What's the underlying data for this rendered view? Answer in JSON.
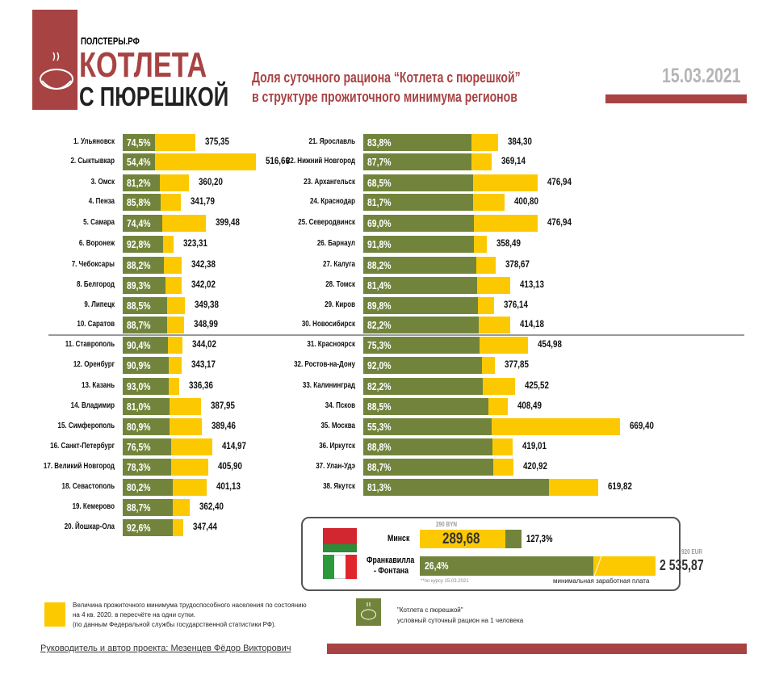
{
  "header": {
    "brand_site": "ПОЛСТЕРЫ.РФ",
    "logo_line1": "КОТЛЕТА",
    "logo_line2": "С ПЮРЕШКОЙ",
    "title_line1": "Доля суточного рациона “Котлета с пюрешкой”",
    "title_line2": "в структуре прожиточного минимума регионов",
    "date": "15.03.2021"
  },
  "colors": {
    "brand_red": "#a84343",
    "green": "#72843c",
    "yellow": "#fcc900",
    "date_gray": "#b5b5b5"
  },
  "chart_data": {
    "type": "bar",
    "stacked": true,
    "series": [
      {
        "meaning": "share",
        "unit": "%"
      },
      {
        "meaning": "subsistence minimum",
        "unit": "RUB/day"
      }
    ],
    "regions": [
      {
        "label": "1. Ульяновск",
        "pct": "74,5%",
        "share": 74.5,
        "value": 375.35,
        "value_text": "375,35"
      },
      {
        "label": "2. Сыктывкар",
        "pct": "54,4%",
        "share": 54.4,
        "value": 516.66,
        "value_text": "516,66"
      },
      {
        "label": "3. Омск",
        "pct": "81,2%",
        "share": 81.2,
        "value": 360.2,
        "value_text": "360,20"
      },
      {
        "label": "4. Пенза",
        "pct": "85,8%",
        "share": 85.8,
        "value": 341.79,
        "value_text": "341,79"
      },
      {
        "label": "5. Самара",
        "pct": "74,4%",
        "share": 74.4,
        "value": 399.48,
        "value_text": "399,48"
      },
      {
        "label": "6. Воронеж",
        "pct": "92,8%",
        "share": 92.8,
        "value": 323.31,
        "value_text": "323,31"
      },
      {
        "label": "7. Чебоксары",
        "pct": "88,2%",
        "share": 88.2,
        "value": 342.38,
        "value_text": "342,38"
      },
      {
        "label": "8. Белгород",
        "pct": "89,3%",
        "share": 89.3,
        "value": 342.02,
        "value_text": "342,02"
      },
      {
        "label": "9. Липецк",
        "pct": "88,5%",
        "share": 88.5,
        "value": 349.38,
        "value_text": "349,38"
      },
      {
        "label": "10. Саратов",
        "pct": "88,7%",
        "share": 88.7,
        "value": 348.99,
        "value_text": "348,99"
      },
      {
        "label": "11. Ставрополь",
        "pct": "90,4%",
        "share": 90.4,
        "value": 344.02,
        "value_text": "344,02"
      },
      {
        "label": "12. Оренбург",
        "pct": "90,9%",
        "share": 90.9,
        "value": 343.17,
        "value_text": "343,17"
      },
      {
        "label": "13. Казань",
        "pct": "93,0%",
        "share": 93.0,
        "value": 336.36,
        "value_text": "336,36"
      },
      {
        "label": "14. Владимир",
        "pct": "81,0%",
        "share": 81.0,
        "value": 387.95,
        "value_text": "387,95"
      },
      {
        "label": "15. Симферополь",
        "pct": "80,9%",
        "share": 80.9,
        "value": 389.46,
        "value_text": "389,46"
      },
      {
        "label": "16. Санкт-Петербург",
        "pct": "76,5%",
        "share": 76.5,
        "value": 414.97,
        "value_text": "414,97"
      },
      {
        "label": "17. Великий Новгород",
        "pct": "78,3%",
        "share": 78.3,
        "value": 405.9,
        "value_text": "405,90"
      },
      {
        "label": "18. Севастополь",
        "pct": "80,2%",
        "share": 80.2,
        "value": 401.13,
        "value_text": "401,13"
      },
      {
        "label": "19. Кемерово",
        "pct": "88,7%",
        "share": 88.7,
        "value": 362.4,
        "value_text": "362,40"
      },
      {
        "label": "20. Йошкар-Ола",
        "pct": "92,6%",
        "share": 92.6,
        "value": 347.44,
        "value_text": "347,44"
      },
      {
        "label": "21. Ярославль",
        "pct": "83,8%",
        "share": 83.8,
        "value": 384.3,
        "value_text": "384,30"
      },
      {
        "label": "22. Нижний Новгород",
        "pct": "87,7%",
        "share": 87.7,
        "value": 369.14,
        "value_text": "369,14"
      },
      {
        "label": "23. Архангельск",
        "pct": "68,5%",
        "share": 68.5,
        "value": 476.94,
        "value_text": "476,94"
      },
      {
        "label": "24. Краснодар",
        "pct": "81,7%",
        "share": 81.7,
        "value": 400.8,
        "value_text": "400,80"
      },
      {
        "label": "25. Северодвинск",
        "pct": "69,0%",
        "share": 69.0,
        "value": 476.94,
        "value_text": "476,94"
      },
      {
        "label": "26. Барнаул",
        "pct": "91,8%",
        "share": 91.8,
        "value": 358.49,
        "value_text": "358,49"
      },
      {
        "label": "27. Калуга",
        "pct": "88,2%",
        "share": 88.2,
        "value": 378.67,
        "value_text": "378,67"
      },
      {
        "label": "28. Томск",
        "pct": "81,4%",
        "share": 81.4,
        "value": 413.13,
        "value_text": "413,13"
      },
      {
        "label": "29. Киров",
        "pct": "89,8%",
        "share": 89.8,
        "value": 376.14,
        "value_text": "376,14"
      },
      {
        "label": "30. Новосибирск",
        "pct": "82,2%",
        "share": 82.2,
        "value": 414.18,
        "value_text": "414,18"
      },
      {
        "label": "31. Красноярск",
        "pct": "75,3%",
        "share": 75.3,
        "value": 454.98,
        "value_text": "454,98"
      },
      {
        "label": "32. Ростов-на-Дону",
        "pct": "92,0%",
        "share": 92.0,
        "value": 377.85,
        "value_text": "377,85"
      },
      {
        "label": "33. Калининград",
        "pct": "82,2%",
        "share": 82.2,
        "value": 425.52,
        "value_text": "425,52"
      },
      {
        "label": "34. Псков",
        "pct": "88,5%",
        "share": 88.5,
        "value": 408.49,
        "value_text": "408,49"
      },
      {
        "label": "35. Москва",
        "pct": "55,3%",
        "share": 55.3,
        "value": 669.4,
        "value_text": "669,40"
      },
      {
        "label": "36. Иркутск",
        "pct": "88,8%",
        "share": 88.8,
        "value": 419.01,
        "value_text": "419,01"
      },
      {
        "label": "37. Улан-Удэ",
        "pct": "88,7%",
        "share": 88.7,
        "value": 420.92,
        "value_text": "420,92"
      },
      {
        "label": "38. Якутск",
        "pct": "81,3%",
        "share": 81.3,
        "value": 619.82,
        "value_text": "619,82"
      }
    ]
  },
  "foreign": {
    "minsk": {
      "label": "Минск",
      "note": "290 BYN",
      "value_text": "289,68",
      "pct": "127,3%",
      "share": 127.3
    },
    "italy": {
      "label1": "Франкавилла",
      "label2": "- Фонтана",
      "note": "920 EUR",
      "value_text": "2 535,87",
      "pct": "26,4%",
      "share": 26.4
    },
    "rate_note": "**по курсу 15.03.2021",
    "wage_note": "минимальная заработная плата"
  },
  "legend": {
    "yellow_line1": "Величина прожиточного минимума трудоспособного населения по состоянию",
    "yellow_line2": "на 4 кв. 2020. в пересчёте на одни сутки.",
    "yellow_line3": "(по данным Федеральной службы государственной статистики РФ).",
    "green_line1": "\"Котлета с пюрешкой\"",
    "green_line2": "условный суточный рацион на 1 человека"
  },
  "footer": {
    "author": "Руководитель и автор проекта: Мезенцев Фёдор Викторович"
  }
}
